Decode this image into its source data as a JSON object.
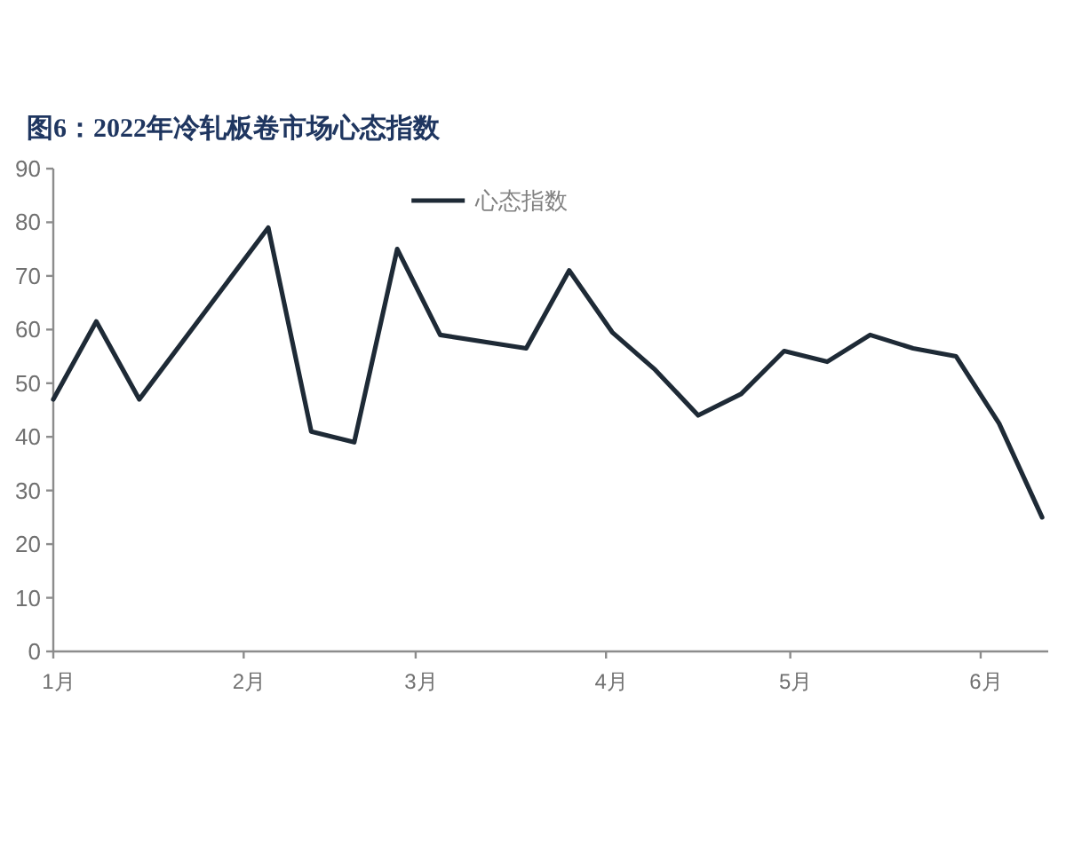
{
  "chart_data": {
    "type": "line",
    "title": "图6：2022年冷轧板卷市场心态指数",
    "x": [
      "2022-01-01",
      "2022-01-08",
      "2022-01-15",
      "2022-02-05",
      "2022-02-12",
      "2022-02-19",
      "2022-02-26",
      "2022-03-05",
      "2022-03-19",
      "2022-03-26",
      "2022-04-02",
      "2022-04-09",
      "2022-04-16",
      "2022-04-23",
      "2022-04-30",
      "2022-05-07",
      "2022-05-14",
      "2022-05-21",
      "2022-05-28",
      "2022-06-04",
      "2022-06-11"
    ],
    "series": [
      {
        "name": "心态指数",
        "color": "#1e2a36",
        "values": [
          47,
          61.5,
          47,
          79,
          41,
          39,
          75,
          59,
          56.5,
          71,
          59.5,
          52.5,
          44,
          48,
          56,
          54,
          59,
          56.5,
          55,
          42.5,
          25
        ]
      }
    ],
    "xlim": [
      "2022-01-01",
      "2022-06-12"
    ],
    "xticks": [
      {
        "value": "2022-01-01",
        "label": "1月"
      },
      {
        "value": "2022-02-01",
        "label": "2月"
      },
      {
        "value": "2022-03-01",
        "label": "3月"
      },
      {
        "value": "2022-04-01",
        "label": "4月"
      },
      {
        "value": "2022-05-01",
        "label": "5月"
      },
      {
        "value": "2022-06-01",
        "label": "6月"
      }
    ],
    "ylim": [
      0,
      90
    ],
    "yticks": [
      0,
      10,
      20,
      30,
      40,
      50,
      60,
      70,
      80,
      90
    ],
    "legend": "top"
  }
}
